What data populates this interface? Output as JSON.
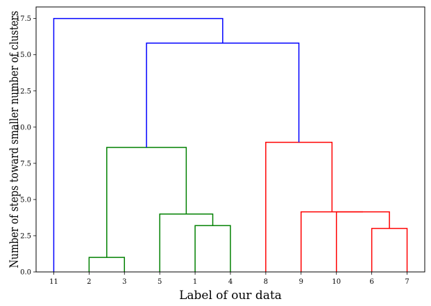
{
  "chart_data": {
    "type": "dendrogram",
    "title": "",
    "xlabel": "Label of our data",
    "ylabel": "Number of steps toward smaller number of clusters",
    "ylim": [
      0,
      18.3
    ],
    "yticks": [
      0.0,
      2.5,
      5.0,
      7.5,
      10.0,
      12.5,
      15.0,
      17.5
    ],
    "ytick_labels": [
      "0.0",
      "2.5",
      "5.0",
      "7.5",
      "10.0",
      "12.5",
      "15.0",
      "17.5"
    ],
    "leaf_order": [
      "11",
      "2",
      "3",
      "5",
      "1",
      "4",
      "8",
      "9",
      "10",
      "6",
      "7"
    ],
    "grid": false,
    "colors": {
      "green": "#008000",
      "red": "#ff0000",
      "blue": "#0000ff",
      "frame": "#000000"
    },
    "links": [
      {
        "name": "link-2-3",
        "color": "green",
        "left_x": 1,
        "left_h": 0,
        "right_x": 2,
        "right_h": 0,
        "height": 1.0
      },
      {
        "name": "link-1-4",
        "color": "green",
        "left_x": 4,
        "left_h": 0,
        "right_x": 5,
        "right_h": 0,
        "height": 3.2
      },
      {
        "name": "link-5-1-4",
        "color": "green",
        "left_x": 3,
        "left_h": 0,
        "right_x": 4.5,
        "right_h": 3.2,
        "height": 4.0
      },
      {
        "name": "link-green-root",
        "color": "green",
        "left_x": 1.5,
        "left_h": 1.0,
        "right_x": 3.75,
        "right_h": 4.0,
        "height": 8.6
      },
      {
        "name": "link-6-7",
        "color": "red",
        "left_x": 9,
        "left_h": 0,
        "right_x": 10,
        "right_h": 0,
        "height": 3.0
      },
      {
        "name": "link-10-6-7",
        "color": "red",
        "left_x": 8,
        "left_h": 0,
        "right_x": 9.5,
        "right_h": 3.0,
        "height": 4.15
      },
      {
        "name": "link-9-10-6-7",
        "color": "red",
        "left_x": 7,
        "left_h": 0,
        "right_x": 8.75,
        "right_h": 4.15,
        "height": 4.15
      },
      {
        "name": "link-red-root",
        "color": "red",
        "left_x": 6,
        "left_h": 0,
        "right_x": 7.875,
        "right_h": 4.15,
        "height": 8.95
      },
      {
        "name": "link-green-red",
        "color": "blue",
        "left_x": 2.625,
        "left_h": 8.6,
        "right_x": 6.9375,
        "right_h": 8.95,
        "height": 15.8
      },
      {
        "name": "link-root",
        "color": "blue",
        "left_x": 0,
        "left_h": 0,
        "right_x": 4.78125,
        "right_h": 15.8,
        "height": 17.5
      }
    ]
  }
}
